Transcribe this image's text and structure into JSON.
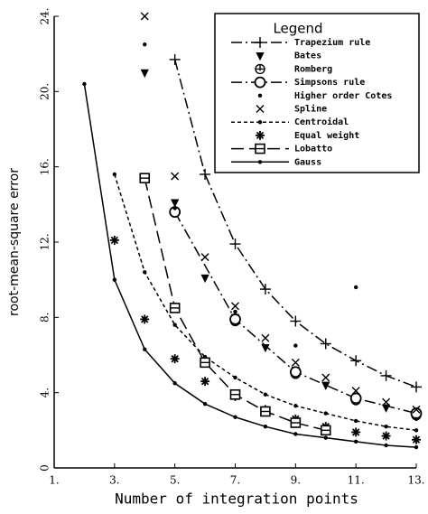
{
  "chart_data": {
    "type": "line",
    "xlabel": "Number of integration points",
    "ylabel": "root-mean-square error",
    "legend_title": "Legend",
    "legend": "upper right",
    "xlim": [
      1,
      13
    ],
    "ylim": [
      0,
      24
    ],
    "xticks": [
      {
        "value": 1,
        "label": "1."
      },
      {
        "value": 3,
        "label": "3."
      },
      {
        "value": 5,
        "label": "5."
      },
      {
        "value": 7,
        "label": "7."
      },
      {
        "value": 9,
        "label": "9."
      },
      {
        "value": 11,
        "label": "11."
      },
      {
        "value": 13,
        "label": "13."
      }
    ],
    "yticks": [
      0,
      {
        "value": 4,
        "label": "4."
      },
      {
        "value": 8,
        "label": "8."
      },
      {
        "value": 12,
        "label": "12."
      },
      {
        "value": 16,
        "label": "16."
      },
      {
        "value": 20,
        "label": "20."
      },
      {
        "value": 24,
        "label": "24."
      }
    ],
    "series": [
      {
        "name": "Trapezium rule",
        "color": "#000000",
        "line": "dashdot",
        "marker": "plus",
        "x": [
          5,
          6,
          7,
          8,
          9,
          10,
          11,
          12,
          13
        ],
        "values": [
          21.7,
          15.6,
          11.9,
          9.5,
          7.8,
          6.6,
          5.7,
          4.9,
          4.3
        ]
      },
      {
        "name": "Bates",
        "color": "#000000",
        "line": "none",
        "marker": "triangle-down",
        "x": [
          4,
          5,
          6,
          7,
          8,
          9,
          10,
          11,
          12,
          13
        ],
        "values": [
          21,
          14.1,
          10.1,
          8,
          6.4,
          5.2,
          4.4,
          3.6,
          3.2,
          2.8
        ]
      },
      {
        "name": "Romberg",
        "color": "#000000",
        "line": "none",
        "marker": "circle-bar",
        "x": [
          7,
          9,
          11,
          13
        ],
        "values": [
          7.8,
          5,
          3.6,
          2.8
        ]
      },
      {
        "name": "Simpsons rule",
        "color": "#000000",
        "line": "dashdot",
        "marker": "circle",
        "x": [
          5,
          7,
          9,
          11,
          13
        ],
        "values": [
          13.6,
          7.9,
          5.1,
          3.7,
          2.9
        ]
      },
      {
        "name": "Higher order Cotes",
        "color": "#000000",
        "line": "none",
        "marker": "dot",
        "x": [
          4,
          5,
          6,
          7,
          9,
          11,
          13
        ],
        "values": [
          22.5,
          13.8,
          5.8,
          8.3,
          6.5,
          9.6,
          2.6
        ]
      },
      {
        "name": "Spline",
        "color": "#000000",
        "line": "none",
        "marker": "x",
        "x": [
          4,
          5,
          6,
          7,
          8,
          9,
          10,
          11,
          12,
          13
        ],
        "values": [
          24,
          15.5,
          11.2,
          8.6,
          6.9,
          5.6,
          4.8,
          4.1,
          3.5,
          3.1
        ]
      },
      {
        "name": "Centroidal",
        "color": "#000000",
        "line": "dashed",
        "marker": "dot",
        "x": [
          3,
          4,
          5,
          6,
          7,
          8,
          9,
          10,
          11,
          12,
          13
        ],
        "values": [
          15.6,
          10.4,
          7.6,
          5.9,
          4.8,
          3.9,
          3.3,
          2.9,
          2.5,
          2.2,
          2
        ]
      },
      {
        "name": "Equal weight",
        "color": "#000000",
        "line": "none",
        "marker": "star",
        "x": [
          3,
          4,
          5,
          6,
          7,
          8,
          9,
          10,
          11,
          12,
          13
        ],
        "values": [
          12.1,
          7.9,
          5.8,
          4.6,
          3.8,
          3.1,
          2.6,
          2.2,
          1.9,
          1.7,
          1.5
        ]
      },
      {
        "name": "Lobatto",
        "color": "#000000",
        "line": "longdash",
        "marker": "square-bar",
        "x": [
          4,
          5,
          6,
          7,
          8,
          9,
          10
        ],
        "values": [
          15.4,
          8.5,
          5.6,
          3.9,
          3,
          2.4,
          2
        ]
      },
      {
        "name": "Gauss",
        "color": "#000000",
        "line": "solid",
        "marker": "dot",
        "x": [
          2,
          3,
          4,
          5,
          6,
          7,
          8,
          9,
          10,
          11,
          12,
          13
        ],
        "values": [
          20.4,
          10,
          6.3,
          4.5,
          3.4,
          2.7,
          2.2,
          1.8,
          1.6,
          1.4,
          1.2,
          1.1
        ]
      }
    ]
  }
}
